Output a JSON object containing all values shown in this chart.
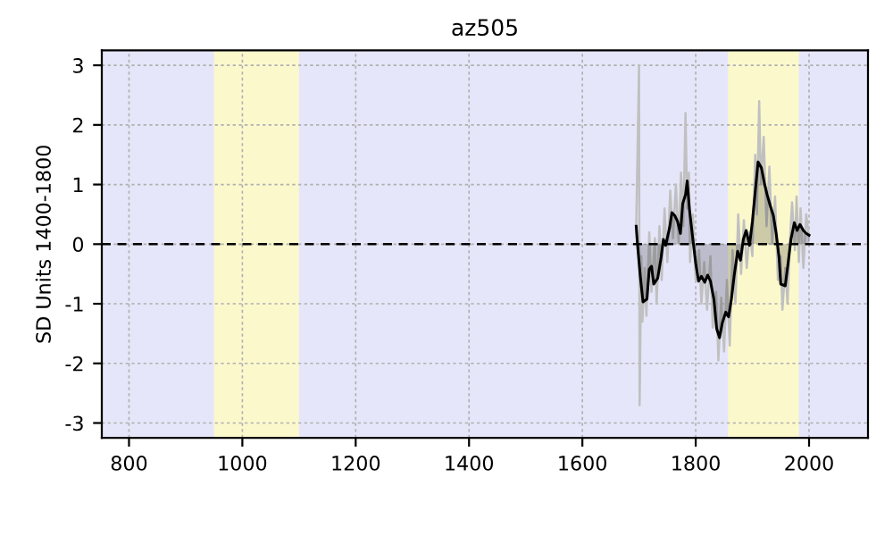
{
  "chart_data": {
    "type": "line",
    "title": "az505",
    "ylabel": "SD Units 1400-1800",
    "xlim": [
      752,
      2104
    ],
    "ylim": [
      -3.25,
      3.25
    ],
    "xticks": [
      800,
      1000,
      1200,
      1400,
      1600,
      1800,
      2000
    ],
    "yticks": [
      -3,
      -2,
      -1,
      0,
      1,
      2,
      3
    ],
    "grid": true,
    "legend": false,
    "bands": [
      {
        "axis": "x",
        "from": 950,
        "to": 1100,
        "color": "#fbf8cc"
      },
      {
        "axis": "x",
        "from": 1857,
        "to": 1982,
        "color": "#fbf8cc"
      }
    ],
    "ref_lines": [
      {
        "axis": "y",
        "value": 0,
        "color": "#000000",
        "line_style": "dashed"
      }
    ],
    "series": [
      {
        "color": "#c0c0c0",
        "x": [
          1695,
          1700,
          1701,
          1704,
          1706,
          1710,
          1713,
          1718,
          1722,
          1728,
          1731,
          1736,
          1740,
          1745,
          1750,
          1755,
          1760,
          1765,
          1770,
          1774,
          1778,
          1782,
          1785,
          1788,
          1790,
          1795,
          1800,
          1806,
          1810,
          1815,
          1820,
          1826,
          1830,
          1836,
          1840,
          1845,
          1850,
          1855,
          1860,
          1865,
          1870,
          1875,
          1880,
          1885,
          1890,
          1895,
          1900,
          1905,
          1908,
          1912,
          1915,
          1920,
          1925,
          1930,
          1935,
          1940,
          1945,
          1950,
          1953,
          1958,
          1962,
          1966,
          1970,
          1975,
          1978,
          1982,
          1985,
          1990,
          1995,
          2000
        ],
        "values": [
          0.3,
          3.0,
          -2.7,
          -0.2,
          -1.3,
          -0.4,
          -1.2,
          0.2,
          -0.8,
          0.1,
          -1.0,
          0.3,
          -0.6,
          0.6,
          -0.3,
          0.9,
          0.1,
          1.0,
          0.0,
          1.2,
          0.3,
          2.2,
          0.6,
          1.2,
          -0.3,
          0.5,
          -0.6,
          -0.1,
          -1.0,
          -0.3,
          -1.1,
          -0.2,
          -1.4,
          -0.8,
          -1.95,
          -0.9,
          -1.8,
          -0.6,
          -1.7,
          -0.1,
          -1.0,
          0.5,
          -0.5,
          0.4,
          -0.4,
          0.2,
          -0.2,
          1.5,
          0.5,
          2.4,
          1.0,
          1.8,
          0.3,
          1.3,
          0.0,
          0.8,
          -0.6,
          -0.2,
          -1.1,
          -0.4,
          -1.0,
          0.0,
          0.7,
          -0.1,
          0.8,
          -0.3,
          0.6,
          -0.4,
          0.5,
          0.1
        ]
      },
      {
        "type": "area",
        "color": "#000000",
        "x": [
          1695,
          1697,
          1702,
          1707,
          1714,
          1718,
          1722,
          1726,
          1733,
          1739,
          1743,
          1747,
          1754,
          1758,
          1763,
          1768,
          1773,
          1777,
          1782,
          1785,
          1789,
          1795,
          1800,
          1805,
          1810,
          1816,
          1821,
          1826,
          1832,
          1837,
          1842,
          1847,
          1853,
          1858,
          1863,
          1868,
          1874,
          1879,
          1884,
          1889,
          1895,
          1900,
          1905,
          1910,
          1916,
          1921,
          1926,
          1932,
          1937,
          1942,
          1947,
          1950,
          1958,
          1963,
          1968,
          1974,
          1979,
          1984,
          1990,
          1995,
          2000
        ],
        "values": [
          0.3,
          0.03,
          -0.52,
          -0.97,
          -0.92,
          -0.42,
          -0.37,
          -0.67,
          -0.57,
          -0.22,
          0.08,
          -0.02,
          0.28,
          0.53,
          0.48,
          0.38,
          0.18,
          0.68,
          0.83,
          1.06,
          0.58,
          0.08,
          -0.32,
          -0.62,
          -0.54,
          -0.64,
          -0.52,
          -0.62,
          -0.92,
          -1.42,
          -1.57,
          -1.32,
          -1.14,
          -1.22,
          -0.92,
          -0.52,
          -0.12,
          -0.27,
          0.08,
          0.23,
          -0.02,
          0.38,
          0.88,
          1.38,
          1.28,
          1.03,
          0.83,
          0.63,
          0.48,
          0.18,
          -0.22,
          -0.67,
          -0.7,
          -0.32,
          0.08,
          0.36,
          0.23,
          0.33,
          0.23,
          0.18,
          0.15
        ]
      }
    ]
  }
}
